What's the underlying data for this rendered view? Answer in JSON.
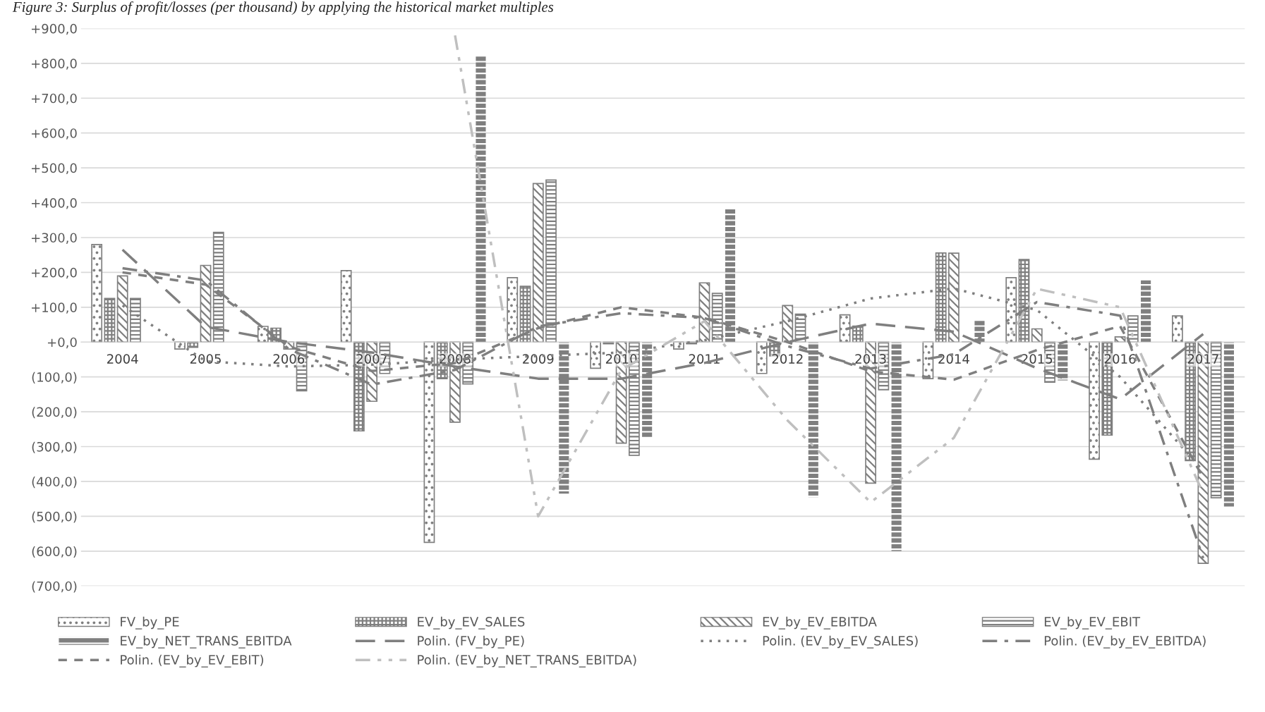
{
  "chart_data": {
    "type": "bar",
    "title": "Figure 3: Surplus of profit/losses (per thousand) by applying the historical market multiples",
    "categories": [
      "2004",
      "2005",
      "2006",
      "2007",
      "2008",
      "2009",
      "2010",
      "2011",
      "2012",
      "2013",
      "2014",
      "2015",
      "2016",
      "2017"
    ],
    "series": [
      {
        "name": "FV_by_PE",
        "color": "#7f7f7f",
        "values": [
          280,
          -20,
          45,
          205,
          -575,
          185,
          -75,
          -20,
          -90,
          78,
          -105,
          185,
          -336,
          75
        ]
      },
      {
        "name": "EV_by_EV_SALES",
        "color": "#7f7f7f",
        "values": [
          125,
          -15,
          40,
          -255,
          -105,
          160,
          -5,
          -5,
          -40,
          46,
          256,
          237,
          -267,
          -340
        ]
      },
      {
        "name": "EV_by_EV_EBITDA",
        "color": "#7f7f7f",
        "values": [
          190,
          220,
          -20,
          -170,
          -230,
          455,
          -290,
          170,
          105,
          -405,
          255,
          38,
          15,
          -635
        ]
      },
      {
        "name": "EV_by_EV_EBIT",
        "color": "#7f7f7f",
        "values": [
          125,
          315,
          -140,
          -90,
          -120,
          465,
          -325,
          140,
          80,
          -137,
          0,
          -115,
          75,
          -447
        ]
      },
      {
        "name": "EV_by_NET_TRANS_EBITDA",
        "color": "#7f7f7f",
        "values": [
          0,
          0,
          0,
          0,
          820,
          -435,
          -275,
          385,
          -445,
          -600,
          63,
          -110,
          177,
          -472
        ]
      },
      {
        "name": "Polin. (FV_by_PE)",
        "type": "line",
        "color": "#7f7f7f",
        "line_style": "dashed",
        "values": [
          265,
          44,
          0,
          -30,
          -70,
          -105,
          -105,
          -60,
          0,
          53,
          30,
          -75,
          -164,
          23
        ]
      },
      {
        "name": "Polin. (EV_by_EV_SALES)",
        "type": "line",
        "color": "#7f7f7f",
        "line_style": "dotted",
        "values": [
          105,
          -55,
          -70,
          -65,
          -50,
          -40,
          -30,
          5,
          60,
          125,
          154,
          92,
          -100,
          -370
        ]
      },
      {
        "name": "Polin. (EV_by_EV_EBITDA)",
        "type": "line",
        "color": "#7f7f7f",
        "line_style": "dashdot",
        "values": [
          212,
          177,
          -20,
          -122,
          -80,
          45,
          83,
          69,
          -12,
          -76,
          -35,
          115,
          76,
          -620
        ]
      },
      {
        "name": "Polin. (EV_by_EV_EBIT)",
        "type": "line",
        "color": "#7f7f7f",
        "line_style": "dashed",
        "values": [
          200,
          165,
          -13,
          -83,
          -60,
          40,
          100,
          70,
          0,
          -84,
          -108,
          -23,
          46,
          -390
        ]
      },
      {
        "name": "Polin. (EV_by_NET_TRANS_EBITDA)",
        "type": "line",
        "color": "#bfbfbf",
        "line_style": "dashdotdot",
        "values": [
          null,
          null,
          null,
          null,
          880,
          -500,
          -80,
          60,
          -225,
          -460,
          -275,
          153,
          100,
          -435
        ]
      }
    ],
    "ylim": [
      -700,
      900
    ],
    "yticks": [
      {
        "value": 900,
        "label": "+900,0"
      },
      {
        "value": 800,
        "label": "+800,0"
      },
      {
        "value": 700,
        "label": "+700,0"
      },
      {
        "value": 600,
        "label": "+600,0"
      },
      {
        "value": 500,
        "label": "+500,0"
      },
      {
        "value": 400,
        "label": "+400,0"
      },
      {
        "value": 300,
        "label": "+300,0"
      },
      {
        "value": 200,
        "label": "+200,0"
      },
      {
        "value": 100,
        "label": "+100,0"
      },
      {
        "value": 0,
        "label": "+0,0"
      },
      {
        "value": -100,
        "label": "(100,0)"
      },
      {
        "value": -200,
        "label": "(200,0)"
      },
      {
        "value": -300,
        "label": "(300,0)"
      },
      {
        "value": -400,
        "label": "(400,0)"
      },
      {
        "value": -500,
        "label": "(500,0)"
      },
      {
        "value": -600,
        "label": "(600,0)"
      },
      {
        "value": -700,
        "label": "(700,0)"
      }
    ],
    "grid": "y",
    "legend": "bottom"
  }
}
